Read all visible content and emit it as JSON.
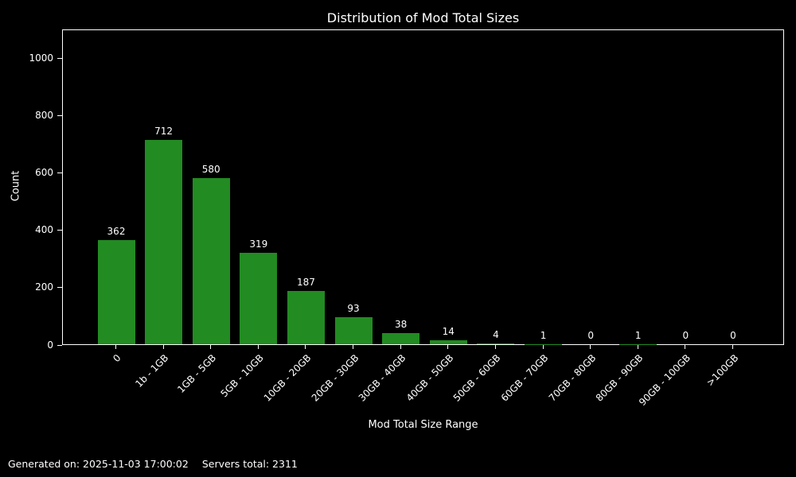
{
  "title": "Distribution of Mod Total Sizes",
  "footer": {
    "generated_on": "Generated on: 2025-11-03 17:00:02",
    "servers_total": "Servers total: 2311"
  },
  "chart_data": {
    "type": "bar",
    "title": "Distribution of Mod Total Sizes",
    "xlabel": "Mod Total Size Range",
    "ylabel": "Count",
    "categories": [
      "0",
      "1b - 1GB",
      "1GB - 5GB",
      "5GB - 10GB",
      "10GB - 20GB",
      "20GB - 30GB",
      "30GB - 40GB",
      "40GB - 50GB",
      "50GB - 60GB",
      "60GB - 70GB",
      "70GB - 80GB",
      "80GB - 90GB",
      "90GB - 100GB",
      ">100GB"
    ],
    "values": [
      362,
      712,
      580,
      319,
      187,
      93,
      38,
      14,
      4,
      1,
      0,
      1,
      0,
      0
    ],
    "yticks": [
      0,
      200,
      400,
      600,
      800,
      1000
    ],
    "ylim": [
      0,
      1100
    ],
    "bar_color": "#228b22",
    "background_color": "#000000",
    "text_color": "#ffffff",
    "spine_color": "#ffffff",
    "grid": false,
    "legend": "none",
    "bar_value_labels_shown": true
  }
}
